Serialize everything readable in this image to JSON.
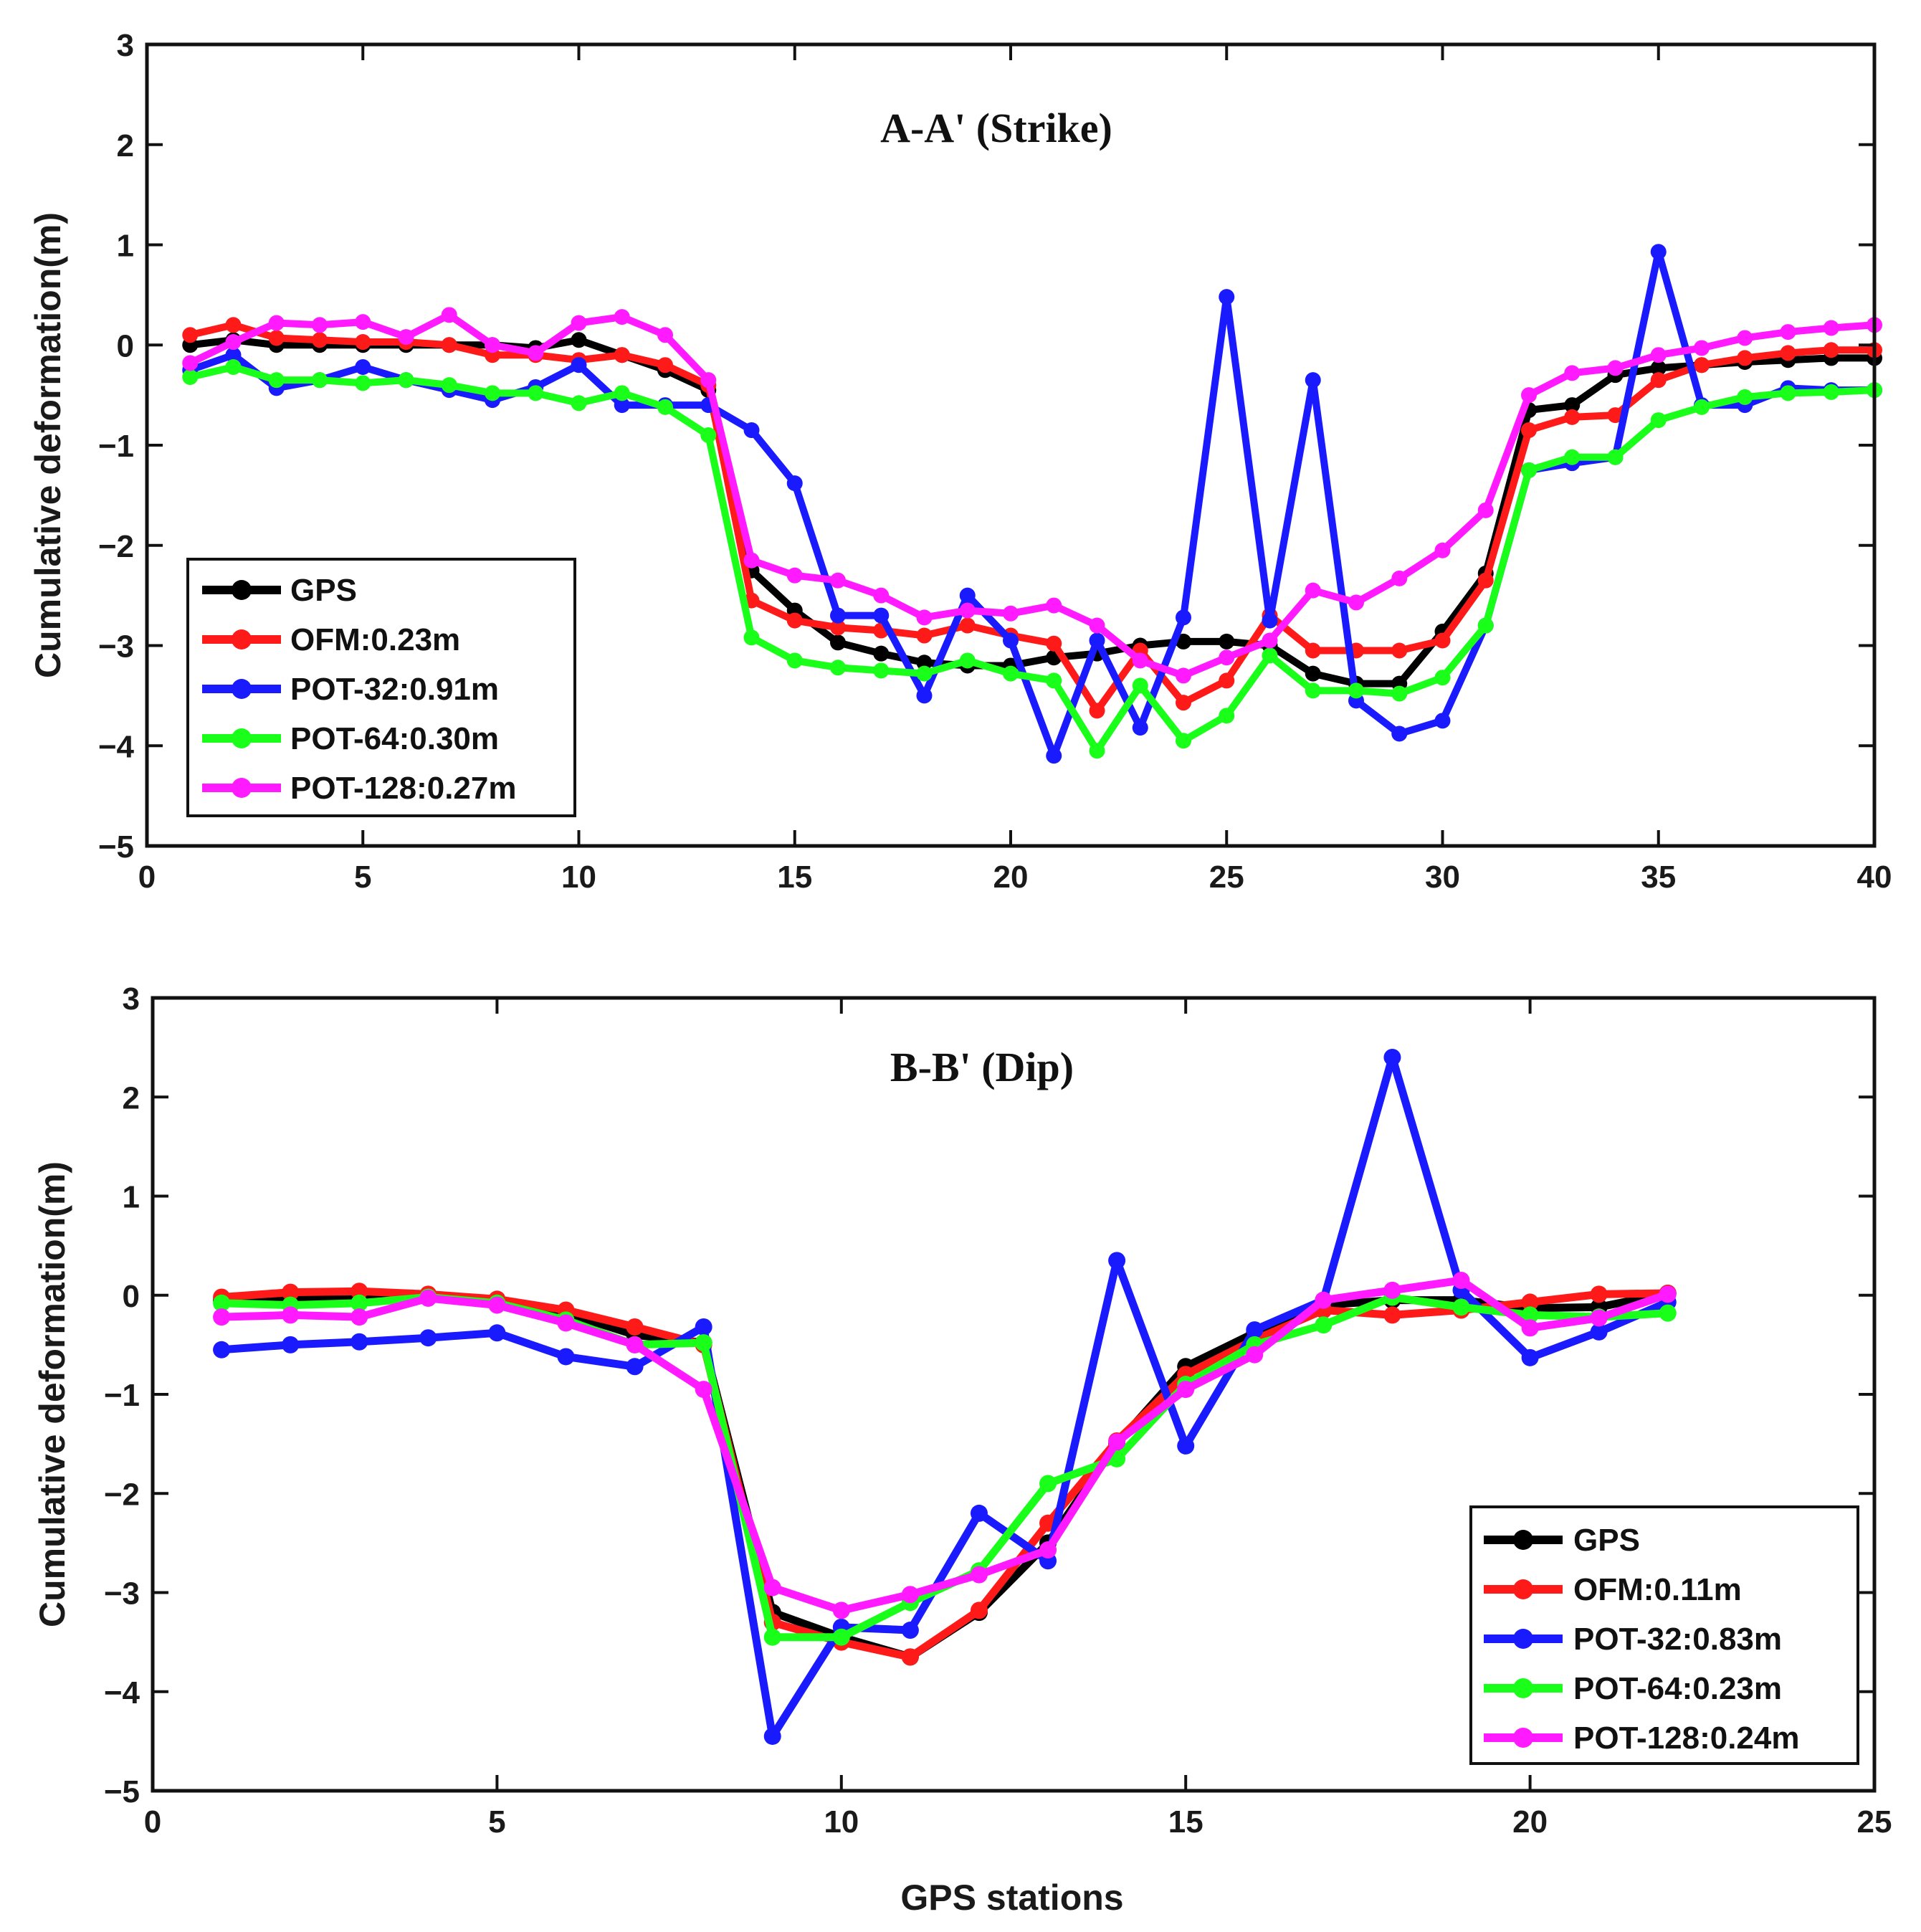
{
  "chart_data": [
    {
      "type": "line",
      "title": "A-A' (Strike)",
      "xlabel": "",
      "ylabel": "Cumulative deformation(m)",
      "xlim": [
        0,
        40
      ],
      "ylim": [
        -5,
        3
      ],
      "xticks": [
        0,
        5,
        10,
        15,
        20,
        25,
        30,
        35,
        40
      ],
      "yticks": [
        -5,
        -4,
        -3,
        -2,
        -1,
        0,
        1,
        2,
        3
      ],
      "legend_position": "bottom-left",
      "x": [
        1,
        2,
        3,
        4,
        5,
        6,
        7,
        8,
        9,
        10,
        11,
        12,
        13,
        14,
        15,
        16,
        17,
        18,
        19,
        20,
        21,
        22,
        23,
        24,
        25,
        26,
        27,
        28,
        29,
        30,
        31,
        32,
        33,
        34,
        35,
        36,
        37,
        38,
        39,
        40
      ],
      "series": [
        {
          "name": "GPS",
          "label": "GPS",
          "color": "#000000",
          "values": [
            0.0,
            0.05,
            0.0,
            0.0,
            0.0,
            0.0,
            0.0,
            0.0,
            -0.03,
            0.05,
            -0.1,
            -0.25,
            -0.45,
            -2.25,
            -2.65,
            -2.97,
            -3.08,
            -3.17,
            -3.2,
            -3.2,
            -3.12,
            -3.08,
            -3.0,
            -2.96,
            -2.96,
            -3.0,
            -3.28,
            -3.38,
            -3.38,
            -2.86,
            -2.28,
            -0.65,
            -0.6,
            -0.3,
            -0.23,
            -0.2,
            -0.17,
            -0.15,
            -0.13,
            -0.13
          ]
        },
        {
          "name": "OFM",
          "label": "OFM:0.23m",
          "color": "#ff1a1a",
          "values": [
            0.1,
            0.2,
            0.07,
            0.05,
            0.03,
            0.03,
            0.0,
            -0.1,
            -0.1,
            -0.15,
            -0.1,
            -0.2,
            -0.4,
            -2.55,
            -2.75,
            -2.82,
            -2.85,
            -2.9,
            -2.8,
            -2.9,
            -2.98,
            -3.65,
            -3.05,
            -3.57,
            -3.35,
            -2.7,
            -3.05,
            -3.05,
            -3.05,
            -2.95,
            -2.35,
            -0.85,
            -0.72,
            -0.7,
            -0.35,
            -0.2,
            -0.13,
            -0.08,
            -0.05,
            -0.05
          ]
        },
        {
          "name": "POT-32",
          "label": "POT-32:0.91m",
          "color": "#1a1aff",
          "values": [
            -0.25,
            -0.1,
            -0.43,
            -0.35,
            -0.22,
            -0.35,
            -0.45,
            -0.55,
            -0.42,
            -0.2,
            -0.6,
            -0.6,
            -0.6,
            -0.85,
            -1.38,
            -2.7,
            -2.7,
            -3.5,
            -2.5,
            -2.95,
            -4.1,
            -2.95,
            -3.82,
            -2.72,
            0.48,
            -2.75,
            -0.35,
            -3.55,
            -3.88,
            -3.75,
            -2.8,
            -1.25,
            -1.18,
            -1.12,
            0.93,
            -0.6,
            -0.6,
            -0.43,
            -0.45,
            -0.45
          ]
        },
        {
          "name": "POT-64",
          "label": "POT-64:0.30m",
          "color": "#1aff1a",
          "values": [
            -0.32,
            -0.22,
            -0.35,
            -0.35,
            -0.38,
            -0.35,
            -0.4,
            -0.48,
            -0.48,
            -0.58,
            -0.48,
            -0.62,
            -0.9,
            -2.92,
            -3.15,
            -3.22,
            -3.25,
            -3.28,
            -3.15,
            -3.28,
            -3.35,
            -4.05,
            -3.4,
            -3.95,
            -3.7,
            -3.1,
            -3.45,
            -3.45,
            -3.48,
            -3.32,
            -2.8,
            -1.25,
            -1.12,
            -1.12,
            -0.75,
            -0.62,
            -0.52,
            -0.48,
            -0.47,
            -0.45
          ]
        },
        {
          "name": "POT-128",
          "label": "POT-128:0.27m",
          "color": "#ff1aff",
          "values": [
            -0.18,
            0.03,
            0.22,
            0.2,
            0.23,
            0.08,
            0.3,
            0.0,
            -0.08,
            0.22,
            0.28,
            0.1,
            -0.35,
            -2.15,
            -2.3,
            -2.35,
            -2.5,
            -2.72,
            -2.65,
            -2.68,
            -2.6,
            -2.8,
            -3.15,
            -3.3,
            -3.12,
            -2.95,
            -2.45,
            -2.57,
            -2.33,
            -2.05,
            -1.65,
            -0.5,
            -0.28,
            -0.23,
            -0.1,
            -0.03,
            0.07,
            0.13,
            0.17,
            0.2
          ]
        }
      ]
    },
    {
      "type": "line",
      "title": "B-B' (Dip)",
      "xlabel": "GPS stations",
      "ylabel": "Cumulative deformation(m)",
      "xlim": [
        0,
        25
      ],
      "ylim": [
        -5,
        3
      ],
      "xticks": [
        0,
        5,
        10,
        15,
        20,
        25
      ],
      "yticks": [
        -5,
        -4,
        -3,
        -2,
        -1,
        0,
        1,
        2,
        3
      ],
      "legend_position": "bottom-right",
      "x": [
        1,
        2,
        3,
        4,
        5,
        6,
        7,
        8,
        9,
        10,
        11,
        12,
        13,
        14,
        15,
        16,
        17,
        18,
        19,
        20,
        21,
        22
      ],
      "series": [
        {
          "name": "GPS",
          "label": "GPS",
          "color": "#000000",
          "values": [
            -0.05,
            -0.03,
            -0.02,
            0.0,
            -0.05,
            -0.18,
            -0.4,
            -0.48,
            -3.2,
            -3.45,
            -3.65,
            -3.2,
            -2.5,
            -1.5,
            -0.72,
            -0.38,
            -0.1,
            -0.05,
            -0.05,
            -0.13,
            -0.12,
            0.02
          ]
        },
        {
          "name": "OFM",
          "label": "OFM:0.11m",
          "color": "#ff1a1a",
          "values": [
            -0.02,
            0.03,
            0.04,
            0.01,
            -0.04,
            -0.15,
            -0.32,
            -0.5,
            -3.3,
            -3.5,
            -3.65,
            -3.18,
            -2.3,
            -1.47,
            -0.8,
            -0.45,
            -0.15,
            -0.2,
            -0.15,
            -0.07,
            0.01,
            0.02
          ]
        },
        {
          "name": "POT-32",
          "label": "POT-32:0.83m",
          "color": "#1a1aff",
          "values": [
            -0.55,
            -0.5,
            -0.47,
            -0.43,
            -0.38,
            -0.62,
            -0.72,
            -0.32,
            -4.45,
            -3.35,
            -3.38,
            -2.2,
            -2.68,
            0.35,
            -1.52,
            -0.35,
            -0.05,
            2.4,
            0.05,
            -0.63,
            -0.37,
            -0.07
          ]
        },
        {
          "name": "POT-64",
          "label": "POT-64:0.23m",
          "color": "#1aff1a",
          "values": [
            -0.08,
            -0.1,
            -0.08,
            -0.02,
            -0.08,
            -0.25,
            -0.5,
            -0.48,
            -3.45,
            -3.45,
            -3.1,
            -2.78,
            -1.9,
            -1.65,
            -0.9,
            -0.5,
            -0.3,
            -0.02,
            -0.12,
            -0.2,
            -0.22,
            -0.18
          ]
        },
        {
          "name": "POT-128",
          "label": "POT-128:0.24m",
          "color": "#ff1aff",
          "values": [
            -0.22,
            -0.2,
            -0.22,
            -0.03,
            -0.1,
            -0.28,
            -0.5,
            -0.95,
            -2.95,
            -3.18,
            -3.02,
            -2.82,
            -2.57,
            -1.48,
            -0.95,
            -0.6,
            -0.05,
            0.05,
            0.15,
            -0.33,
            -0.23,
            0.01
          ]
        }
      ]
    }
  ]
}
